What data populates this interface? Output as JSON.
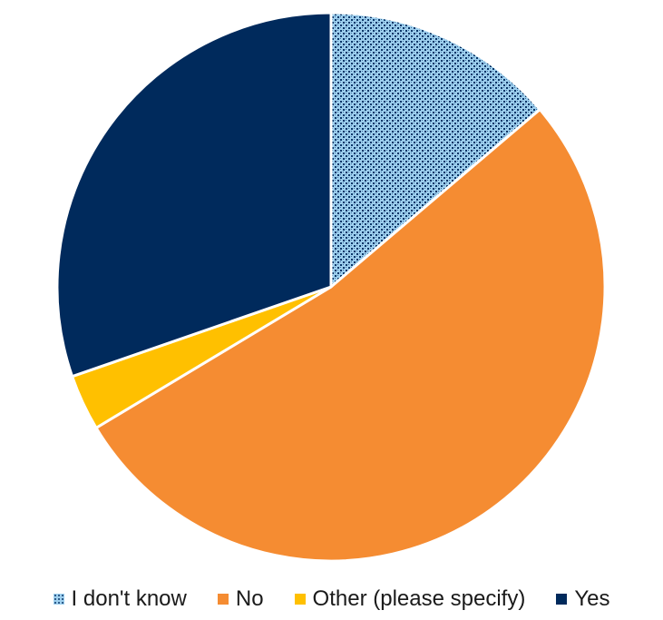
{
  "chart_data": {
    "type": "pie",
    "categories": [
      "I don't know",
      "No",
      "Other (please specify)",
      "Yes"
    ],
    "values": [
      13.8,
      52.6,
      3.3,
      30.3
    ],
    "colors": [
      "#9ecfee",
      "#f58c32",
      "#ffc000",
      "#002a5c"
    ],
    "pattern_color": "#0a3668",
    "patterned": [
      true,
      false,
      false,
      false
    ],
    "start_angle_deg": 0,
    "direction": "clockwise",
    "legend_position": "bottom",
    "title": ""
  }
}
